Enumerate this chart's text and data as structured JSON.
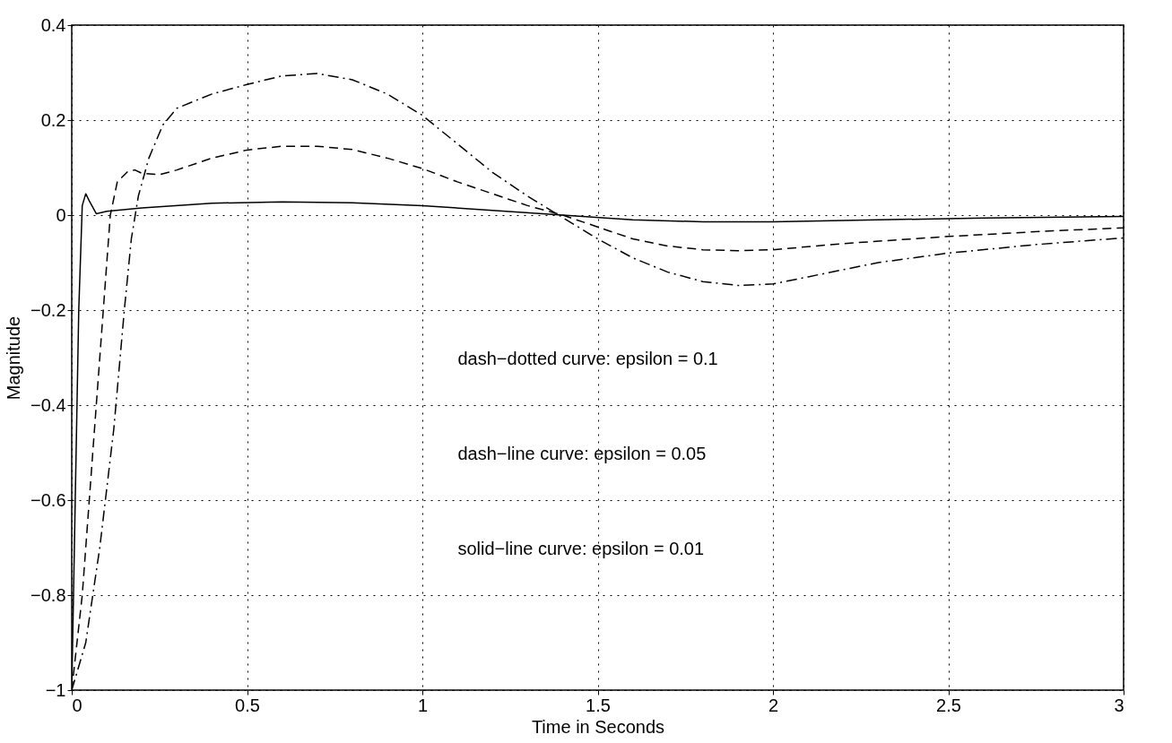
{
  "chart_data": {
    "type": "line",
    "xlabel": "Time in Seconds",
    "ylabel": "Magnitude",
    "xlim": [
      0,
      3
    ],
    "ylim": [
      -1,
      0.4
    ],
    "xticks": [
      0,
      0.5,
      1,
      1.5,
      2,
      2.5,
      3
    ],
    "yticks": [
      -1,
      -0.8,
      -0.6,
      -0.4,
      -0.2,
      0,
      0.2,
      0.4
    ],
    "grid": true,
    "legend": false,
    "marker": "none",
    "annotations": [
      "dash−dotted curve: epsilon = 0.1",
      "dash−line curve: epsilon = 0.05",
      "solid−line curve: epsilon = 0.01"
    ],
    "series": [
      {
        "color": "#000000",
        "line_style": "solid",
        "x": [
          0,
          0.01,
          0.02,
          0.03,
          0.04,
          0.05,
          0.07,
          0.1,
          0.2,
          0.4,
          0.6,
          0.8,
          1.0,
          1.2,
          1.4,
          1.6,
          1.8,
          2.0,
          2.3,
          2.6,
          3
        ],
        "values": [
          -1,
          -0.6,
          -0.2,
          0.02,
          0.045,
          0.03,
          0.003,
          0.008,
          0.015,
          0.025,
          0.028,
          0.026,
          0.02,
          0.01,
          0,
          -0.01,
          -0.014,
          -0.014,
          -0.01,
          -0.006,
          -0.003
        ]
      },
      {
        "color": "#000000",
        "line_style": "dashed",
        "x": [
          0,
          0.03,
          0.06,
          0.09,
          0.11,
          0.13,
          0.16,
          0.18,
          0.2,
          0.25,
          0.3,
          0.4,
          0.5,
          0.6,
          0.7,
          0.8,
          0.9,
          1.0,
          1.1,
          1.2,
          1.3,
          1.4,
          1.5,
          1.6,
          1.7,
          1.8,
          1.9,
          2.0,
          2.2,
          2.5,
          2.8,
          3
        ],
        "values": [
          -1,
          -0.8,
          -0.5,
          -0.2,
          0,
          0.07,
          0.092,
          0.095,
          0.088,
          0.085,
          0.095,
          0.12,
          0.137,
          0.145,
          0.145,
          0.138,
          0.12,
          0.098,
          0.07,
          0.045,
          0.02,
          0,
          -0.025,
          -0.05,
          -0.065,
          -0.073,
          -0.075,
          -0.073,
          -0.06,
          -0.045,
          -0.033,
          -0.027
        ]
      },
      {
        "color": "#000000",
        "line_style": "dashdot",
        "x": [
          0,
          0.04,
          0.08,
          0.12,
          0.15,
          0.17,
          0.19,
          0.22,
          0.26,
          0.3,
          0.4,
          0.5,
          0.6,
          0.7,
          0.8,
          0.9,
          1.0,
          1.1,
          1.2,
          1.3,
          1.4,
          1.5,
          1.6,
          1.7,
          1.8,
          1.9,
          2.0,
          2.1,
          2.3,
          2.5,
          2.75,
          3
        ],
        "values": [
          -1,
          -0.9,
          -0.7,
          -0.45,
          -0.2,
          -0.05,
          0.04,
          0.12,
          0.19,
          0.225,
          0.255,
          0.275,
          0.293,
          0.298,
          0.285,
          0.255,
          0.21,
          0.15,
          0.09,
          0.04,
          -0.005,
          -0.05,
          -0.09,
          -0.12,
          -0.14,
          -0.148,
          -0.145,
          -0.13,
          -0.1,
          -0.08,
          -0.062,
          -0.048
        ]
      }
    ]
  }
}
